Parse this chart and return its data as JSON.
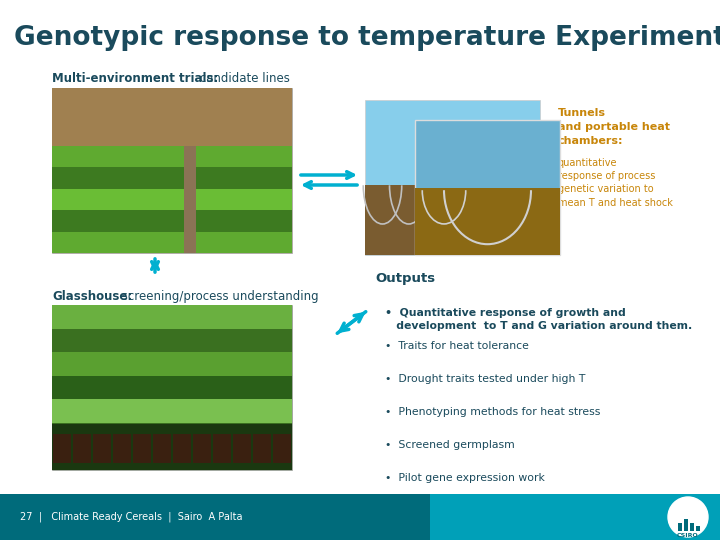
{
  "title": "Genotypic response to temperature Experiments",
  "title_color": "#1a4a5c",
  "title_fontsize": 19,
  "bg_color": "#ffffff",
  "footer_bg_color": "#006b7b",
  "footer_teal_color": "#00a0b8",
  "footer_text": "27  |   Climate Ready Cereals  |  Sairo  A Palta",
  "footer_text_color": "#ffffff",
  "multi_env_label": "Multi-environment trials:",
  "multi_env_sub": " candidate lines",
  "multi_env_color": "#1a4a5c",
  "tunnels_bold": "Tunnels\nand portable heat\nchambers:",
  "tunnels_regular": "quantitative\nresponse of process\ngenetic variation to\nmean T and heat shock",
  "tunnels_color": "#c8860a",
  "outputs_label": "Outputs",
  "outputs_color": "#1a4a5c",
  "glasshouse_label": "Glasshouse:",
  "glasshouse_sub": " screening/process understanding",
  "glasshouse_color": "#1a4a5c",
  "bullet_points": [
    "Quantitative response of growth and\n   development  to T and G variation around them.",
    "Traits for heat tolerance",
    "Drought traits tested under high T",
    "Phenotyping methods for heat stress",
    "Screened germplasm",
    "Pilot gene expression work"
  ],
  "bullet_color": "#1a4a5c",
  "arrow_color": "#00b0d0",
  "field_colors": [
    "#3d7a20",
    "#5aa830",
    "#8B7355",
    "#2a5a10",
    "#5aa830",
    "#3d7a20"
  ],
  "tunnel_sky": "#87CEEB",
  "tunnel_ground": "#8B7355"
}
